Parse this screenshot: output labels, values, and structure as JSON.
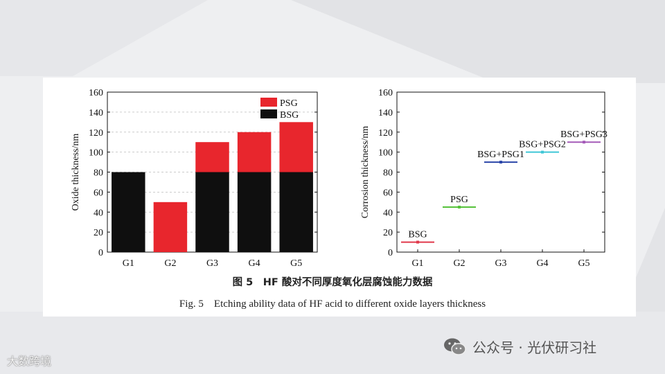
{
  "figure": {
    "caption_cn": "图 5　HF 酸对不同厚度氧化层腐蚀能力数据",
    "caption_en": "Fig. 5　Etching ability data of HF acid to different oxide layers thickness"
  },
  "watermarks": {
    "left": "大数跨境",
    "right": "公众号 · 光伏研习社",
    "right_icon": "wechat-icon"
  },
  "colors": {
    "psg": "#e8262d",
    "bsg": "#0f0f0f"
  },
  "chart_data": [
    {
      "type": "bar",
      "stacked": true,
      "categories": [
        "G1",
        "G2",
        "G3",
        "G4",
        "G5"
      ],
      "series": [
        {
          "name": "BSG",
          "values": [
            80,
            0,
            80,
            80,
            80
          ],
          "color": "#0f0f0f"
        },
        {
          "name": "PSG",
          "values": [
            0,
            50,
            30,
            40,
            50
          ],
          "color": "#e8262d"
        }
      ],
      "ylabel": "Oxide thickness/nm",
      "xlabel": "",
      "ylim": [
        0,
        160
      ],
      "yticks": [
        0,
        20,
        40,
        60,
        80,
        100,
        120,
        140,
        160
      ],
      "legend_position": "top-right",
      "grid": "dashed horizontal"
    },
    {
      "type": "scatter",
      "categories": [
        "G1",
        "G2",
        "G3",
        "G4",
        "G5"
      ],
      "points": [
        {
          "x": "G1",
          "y": 10,
          "label": "BSG",
          "color": "#e0384a"
        },
        {
          "x": "G2",
          "y": 45,
          "label": "PSG",
          "color": "#55c23a"
        },
        {
          "x": "G3",
          "y": 90,
          "label": "BSG+PSG1",
          "color": "#2a45a8"
        },
        {
          "x": "G4",
          "y": 100,
          "label": "BSG+PSG2",
          "color": "#3ec6d6"
        },
        {
          "x": "G5",
          "y": 110,
          "label": "BSG+PSG3",
          "color": "#a45ab8"
        }
      ],
      "ylabel": "Corrosion thickness/nm",
      "xlabel": "",
      "ylim": [
        0,
        160
      ],
      "yticks": [
        0,
        20,
        40,
        60,
        80,
        100,
        120,
        140,
        160
      ],
      "grid": false
    }
  ]
}
